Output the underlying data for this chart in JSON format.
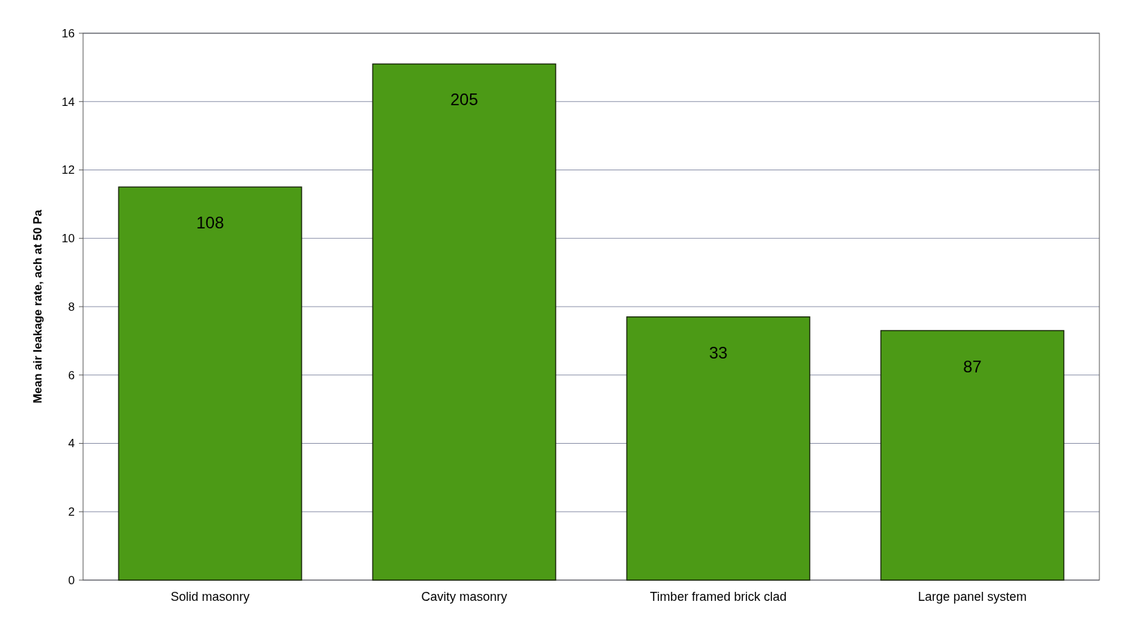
{
  "chart_data": {
    "type": "bar",
    "ylabel": "Mean air leakage rate, ach at 50 Pa",
    "categories": [
      "Solid masonry",
      "Cavity masonry",
      "Timber framed brick clad",
      "Large panel system"
    ],
    "values": [
      11.5,
      15.1,
      7.7,
      7.3
    ],
    "color": "#4c9a16",
    "ylim": [
      0,
      16
    ],
    "yticks": [
      0,
      2,
      4,
      6,
      8,
      10,
      12,
      14,
      16
    ],
    "grid": "y",
    "annotations": [
      "108",
      "205",
      "33",
      "87"
    ]
  }
}
